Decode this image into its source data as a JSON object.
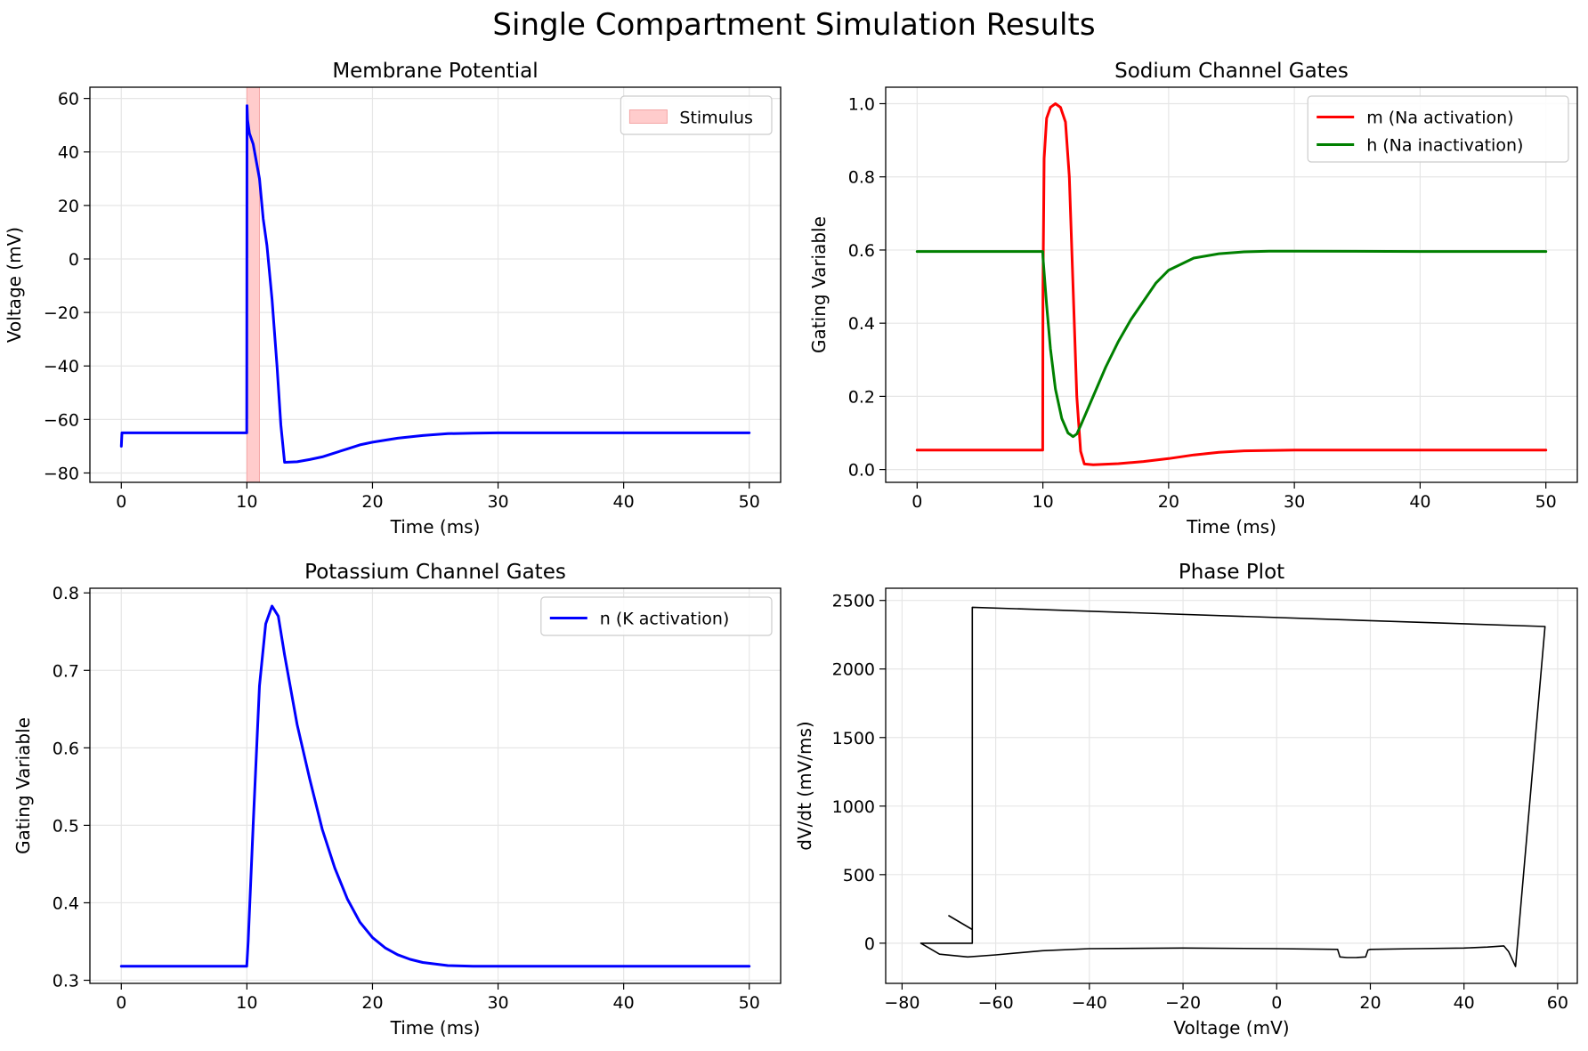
{
  "figure_title": "Single Compartment Simulation Results",
  "chart_data": [
    {
      "id": "membrane",
      "type": "line",
      "title": "Membrane Potential",
      "xlabel": "Time (ms)",
      "ylabel": "Voltage (mV)",
      "xlim": [
        -2.5,
        52.5
      ],
      "ylim": [
        -83.5,
        64.2
      ],
      "xticks": [
        0,
        10,
        20,
        30,
        40,
        50
      ],
      "yticks": [
        -80,
        -60,
        -40,
        -20,
        0,
        20,
        40,
        60
      ],
      "grid": true,
      "legend_position": "top-right",
      "legend": [
        {
          "label": "Stimulus",
          "kind": "patch",
          "color": "#ffcccc"
        }
      ],
      "shaded_regions": [
        {
          "name": "Stimulus",
          "x0": 10,
          "x1": 11,
          "color": "#ffcccc",
          "edge": "#f4a6a6"
        }
      ],
      "series": [
        {
          "color": "#0000ff",
          "width": 3,
          "x": [
            0,
            0.05,
            0.2,
            1,
            5,
            9.99,
            10.01,
            10.05,
            10.2,
            10.5,
            11,
            11.3,
            11.6,
            12,
            12.4,
            12.7,
            13,
            14,
            15,
            16,
            17,
            18,
            19,
            20,
            22,
            24,
            26,
            28,
            30,
            35,
            40,
            45,
            50
          ],
          "y": [
            -70,
            -65,
            -65,
            -65,
            -65,
            -65,
            57.3,
            52,
            47,
            43,
            30,
            15,
            5,
            -15,
            -40,
            -62,
            -76,
            -75.8,
            -75,
            -74,
            -72.5,
            -71,
            -69.5,
            -68.5,
            -67,
            -66,
            -65.3,
            -65.1,
            -65,
            -65,
            -65,
            -65,
            -65
          ]
        }
      ]
    },
    {
      "id": "sodium",
      "type": "line",
      "title": "Sodium Channel Gates",
      "xlabel": "Time (ms)",
      "ylabel": "Gating Variable",
      "xlim": [
        -2.5,
        52.5
      ],
      "ylim": [
        -0.035,
        1.045
      ],
      "xticks": [
        0,
        10,
        20,
        30,
        40,
        50
      ],
      "yticks": [
        0.0,
        0.2,
        0.4,
        0.6,
        0.8,
        1.0
      ],
      "ytick_labels": [
        "0.0",
        "0.2",
        "0.4",
        "0.6",
        "0.8",
        "1.0"
      ],
      "grid": true,
      "legend_position": "top-right",
      "legend": [
        {
          "label": "m (Na activation)",
          "kind": "line",
          "color": "#ff0000"
        },
        {
          "label": "h (Na inactivation)",
          "kind": "line",
          "color": "#008000"
        }
      ],
      "series": [
        {
          "name": "m (Na activation)",
          "color": "#ff0000",
          "width": 3,
          "x": [
            0,
            9.99,
            10.01,
            10.1,
            10.3,
            10.6,
            11,
            11.4,
            11.8,
            12.1,
            12.4,
            12.7,
            13,
            13.3,
            14,
            16,
            18,
            20,
            22,
            24,
            26,
            30,
            40,
            50
          ],
          "y": [
            0.053,
            0.053,
            0.5,
            0.85,
            0.96,
            0.99,
            1.0,
            0.99,
            0.95,
            0.8,
            0.5,
            0.2,
            0.05,
            0.015,
            0.013,
            0.016,
            0.022,
            0.03,
            0.04,
            0.047,
            0.051,
            0.053,
            0.053,
            0.053
          ]
        },
        {
          "name": "h (Na inactivation)",
          "color": "#008000",
          "width": 3,
          "x": [
            0,
            9.99,
            10.01,
            10.3,
            10.6,
            11,
            11.5,
            12,
            12.4,
            12.7,
            13,
            14,
            15,
            16,
            17,
            18,
            19,
            20,
            22,
            24,
            26,
            28,
            30,
            40,
            50
          ],
          "y": [
            0.596,
            0.596,
            0.58,
            0.45,
            0.33,
            0.22,
            0.14,
            0.1,
            0.09,
            0.097,
            0.12,
            0.2,
            0.28,
            0.35,
            0.41,
            0.46,
            0.51,
            0.545,
            0.578,
            0.59,
            0.595,
            0.597,
            0.597,
            0.596,
            0.596
          ]
        }
      ]
    },
    {
      "id": "potassium",
      "type": "line",
      "title": "Potassium Channel Gates",
      "xlabel": "Time (ms)",
      "ylabel": "Gating Variable",
      "xlim": [
        -2.5,
        52.5
      ],
      "ylim": [
        0.296,
        0.806
      ],
      "xticks": [
        0,
        10,
        20,
        30,
        40,
        50
      ],
      "yticks": [
        0.3,
        0.4,
        0.5,
        0.6,
        0.7,
        0.8
      ],
      "ytick_labels": [
        "0.3",
        "0.4",
        "0.5",
        "0.6",
        "0.7",
        "0.8"
      ],
      "grid": true,
      "legend_position": "top-right",
      "legend": [
        {
          "label": "n (K activation)",
          "kind": "line",
          "color": "#0000ff"
        }
      ],
      "series": [
        {
          "name": "n (K activation)",
          "color": "#0000ff",
          "width": 3,
          "x": [
            0,
            9.99,
            10.1,
            10.5,
            11,
            11.5,
            12,
            12.5,
            13,
            14,
            15,
            16,
            17,
            18,
            19,
            20,
            21,
            22,
            23,
            24,
            26,
            28,
            30,
            40,
            50
          ],
          "y": [
            0.318,
            0.318,
            0.35,
            0.5,
            0.68,
            0.76,
            0.783,
            0.77,
            0.72,
            0.63,
            0.56,
            0.495,
            0.445,
            0.405,
            0.375,
            0.355,
            0.342,
            0.333,
            0.327,
            0.323,
            0.319,
            0.318,
            0.318,
            0.318,
            0.318
          ]
        }
      ]
    },
    {
      "id": "phase",
      "type": "line",
      "title": "Phase Plot",
      "xlabel": "Voltage (mV)",
      "ylabel": "dV/dt (mV/ms)",
      "xlim": [
        -83.5,
        64.2
      ],
      "ylim": [
        -293,
        2589
      ],
      "xticks": [
        -80,
        -60,
        -40,
        -20,
        0,
        20,
        40,
        60
      ],
      "yticks": [
        0,
        500,
        1000,
        1500,
        2000,
        2500
      ],
      "grid": true,
      "series": [
        {
          "color": "#000000",
          "width": 1.6,
          "x": [
            -70,
            -65,
            -65,
            -76,
            -65,
            -65,
            57.3,
            51,
            49.5,
            48.5,
            45,
            40,
            30,
            20,
            19.5,
            19,
            17,
            15,
            13.5,
            13,
            0,
            -20,
            -40,
            -50,
            -60,
            -66,
            -72,
            -76
          ],
          "y": [
            200,
            100,
            0,
            0,
            0,
            2450,
            2310,
            -170,
            -60,
            -20,
            -28,
            -35,
            -40,
            -45,
            -50,
            -100,
            -105,
            -105,
            -100,
            -45,
            -40,
            -35,
            -40,
            -55,
            -85,
            -100,
            -80,
            0
          ]
        }
      ]
    }
  ]
}
